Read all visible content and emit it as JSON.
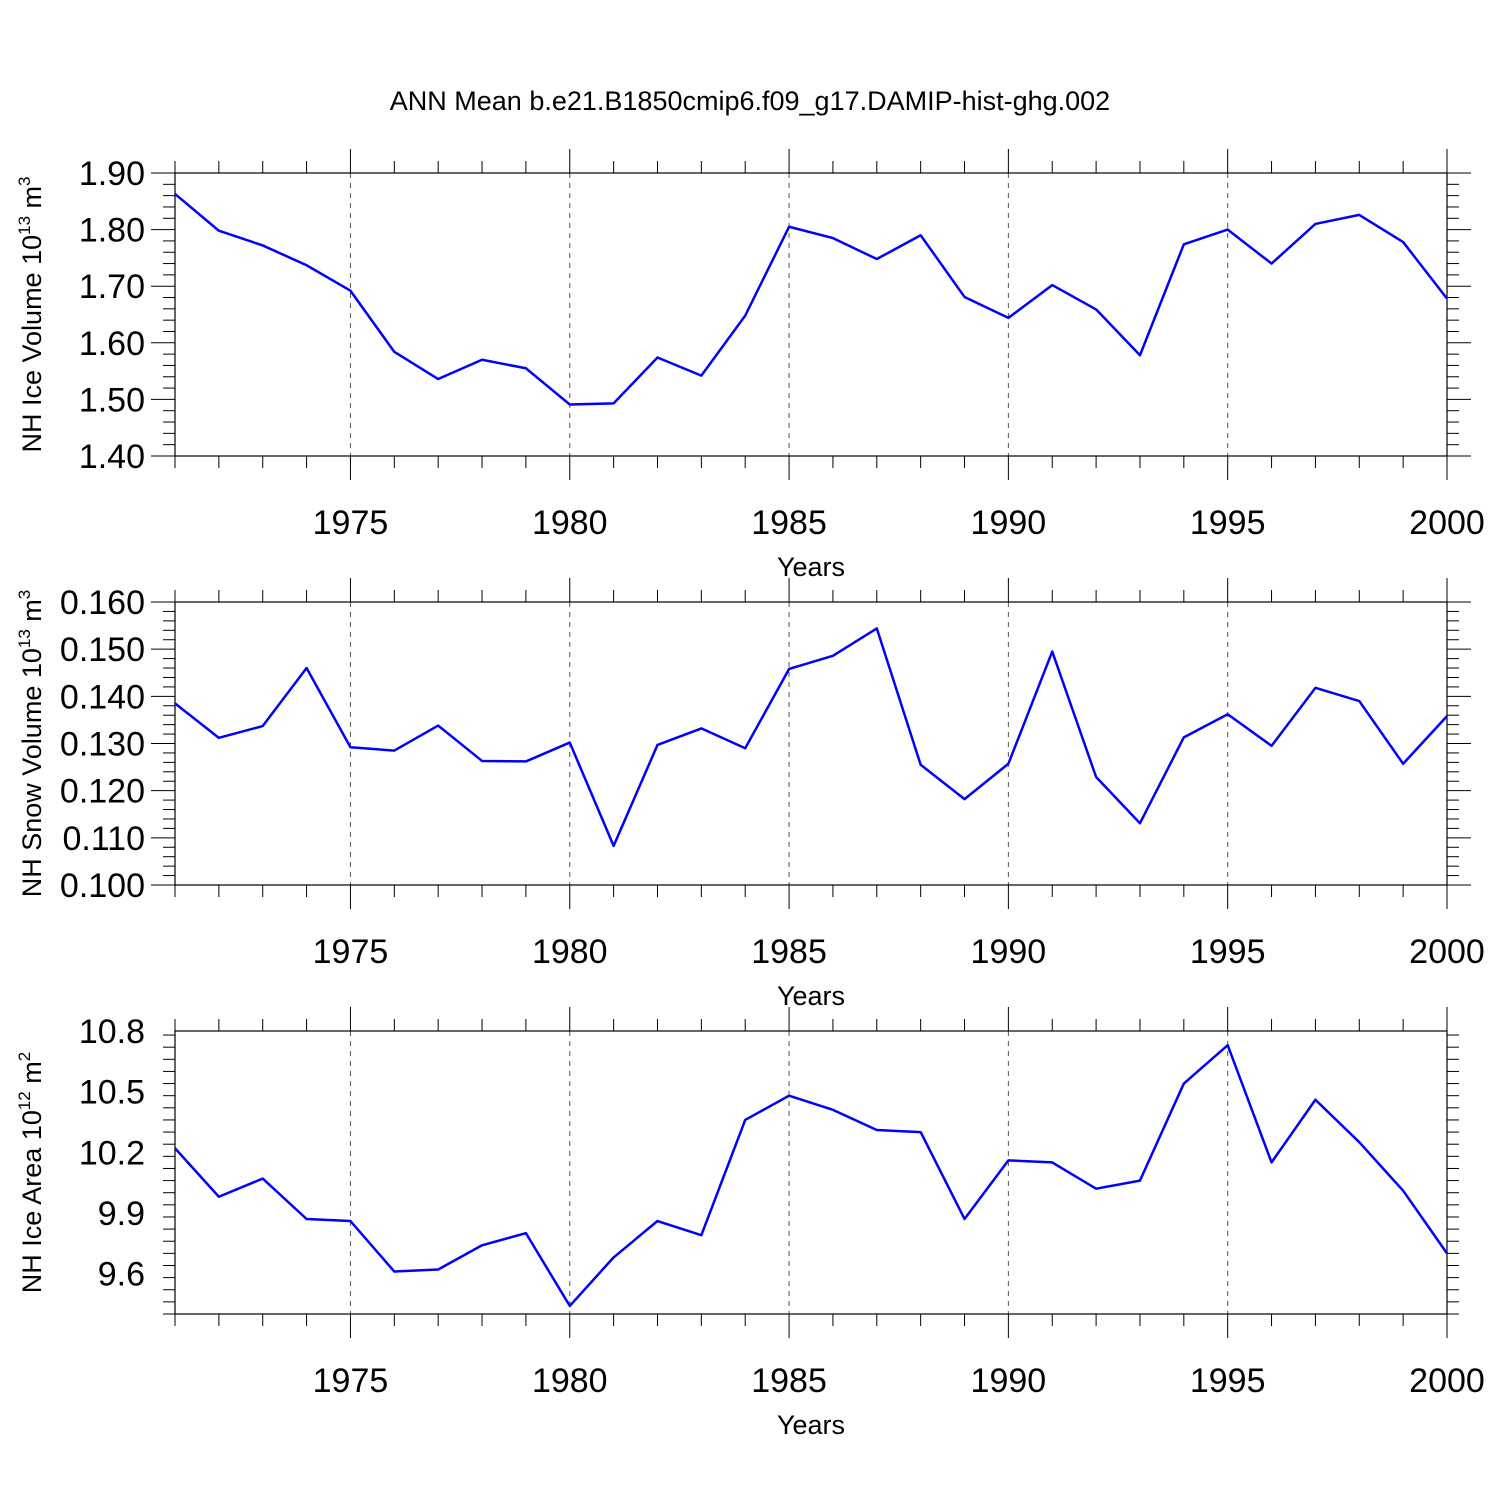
{
  "title": "ANN Mean b.e21.B1850cmip6.f09_g17.DAMIP-hist-ghg.002",
  "colors": {
    "line": "#0000ff",
    "axis": "#000000",
    "grid": "#555555"
  },
  "chart_data": [
    {
      "type": "line",
      "ylabel_text": "NH Ice Volume 10",
      "ylabel_exp": "13",
      "ylabel_unit": " m",
      "ylabel_unit_exp": "3",
      "xlabel": "Years",
      "xlim": [
        1971,
        2000
      ],
      "ylim": [
        1.4,
        1.9
      ],
      "xticks": [
        "1975",
        "1980",
        "1985",
        "1990",
        "1995",
        "2000"
      ],
      "yticks": [
        "1.40",
        "1.50",
        "1.60",
        "1.70",
        "1.80",
        "1.90"
      ],
      "grid": "vertical-dashed",
      "series": [
        {
          "x": [
            1971,
            1972,
            1973,
            1974,
            1975,
            1976,
            1977,
            1978,
            1979,
            1980,
            1981,
            1982,
            1983,
            1984,
            1985,
            1986,
            1987,
            1988,
            1989,
            1990,
            1991,
            1992,
            1993,
            1994,
            1995,
            1996,
            1997,
            1998,
            1999,
            2000
          ],
          "values": [
            1.863,
            1.798,
            1.772,
            1.737,
            1.692,
            1.584,
            1.536,
            1.57,
            1.555,
            1.491,
            1.493,
            1.574,
            1.542,
            1.648,
            1.805,
            1.785,
            1.748,
            1.79,
            1.681,
            1.644,
            1.702,
            1.659,
            1.578,
            1.774,
            1.8,
            1.74,
            1.81,
            1.826,
            1.778,
            1.678
          ]
        }
      ]
    },
    {
      "type": "line",
      "ylabel_text": "NH Snow Volume 10",
      "ylabel_exp": "13",
      "ylabel_unit": " m",
      "ylabel_unit_exp": "3",
      "xlabel": "Years",
      "xlim": [
        1971,
        2000
      ],
      "ylim": [
        0.1,
        0.16
      ],
      "xticks": [
        "1975",
        "1980",
        "1985",
        "1990",
        "1995",
        "2000"
      ],
      "yticks": [
        "0.100",
        "0.110",
        "0.120",
        "0.130",
        "0.140",
        "0.150",
        "0.160"
      ],
      "grid": "vertical-dashed",
      "series": [
        {
          "x": [
            1971,
            1972,
            1973,
            1974,
            1975,
            1976,
            1977,
            1978,
            1979,
            1980,
            1981,
            1982,
            1983,
            1984,
            1985,
            1986,
            1987,
            1988,
            1989,
            1990,
            1991,
            1992,
            1993,
            1994,
            1995,
            1996,
            1997,
            1998,
            1999,
            2000
          ],
          "values": [
            0.1385,
            0.1312,
            0.1337,
            0.146,
            0.1292,
            0.1285,
            0.1338,
            0.1263,
            0.1262,
            0.1302,
            0.1083,
            0.1297,
            0.1332,
            0.129,
            0.1458,
            0.1486,
            0.1544,
            0.1255,
            0.1182,
            0.1257,
            0.1495,
            0.1229,
            0.1131,
            0.1313,
            0.1362,
            0.1295,
            0.1418,
            0.139,
            0.1257,
            0.1358
          ]
        }
      ]
    },
    {
      "type": "line",
      "ylabel_text": "NH Ice Area 10",
      "ylabel_exp": "12",
      "ylabel_unit": " m",
      "ylabel_unit_exp": "2",
      "xlabel": "Years",
      "xlim": [
        1971,
        2000
      ],
      "ylim": [
        9.4,
        10.8
      ],
      "xticks": [
        "1975",
        "1980",
        "1985",
        "1990",
        "1995",
        "2000"
      ],
      "yticks": [
        "9.6",
        "9.9",
        "10.2",
        "10.5",
        "10.8"
      ],
      "grid": "vertical-dashed",
      "series": [
        {
          "x": [
            1971,
            1972,
            1973,
            1974,
            1975,
            1976,
            1977,
            1978,
            1979,
            1980,
            1981,
            1982,
            1983,
            1984,
            1985,
            1986,
            1987,
            1988,
            1989,
            1990,
            1991,
            1992,
            1993,
            1994,
            1995,
            1996,
            1997,
            1998,
            1999,
            2000
          ],
          "values": [
            10.22,
            9.98,
            10.07,
            9.87,
            9.86,
            9.61,
            9.62,
            9.74,
            9.8,
            9.44,
            9.68,
            9.86,
            9.79,
            10.36,
            10.48,
            10.41,
            10.31,
            10.3,
            9.87,
            10.16,
            10.15,
            10.02,
            10.06,
            10.54,
            10.73,
            10.15,
            10.46,
            10.25,
            10.01,
            9.7
          ]
        }
      ]
    }
  ]
}
